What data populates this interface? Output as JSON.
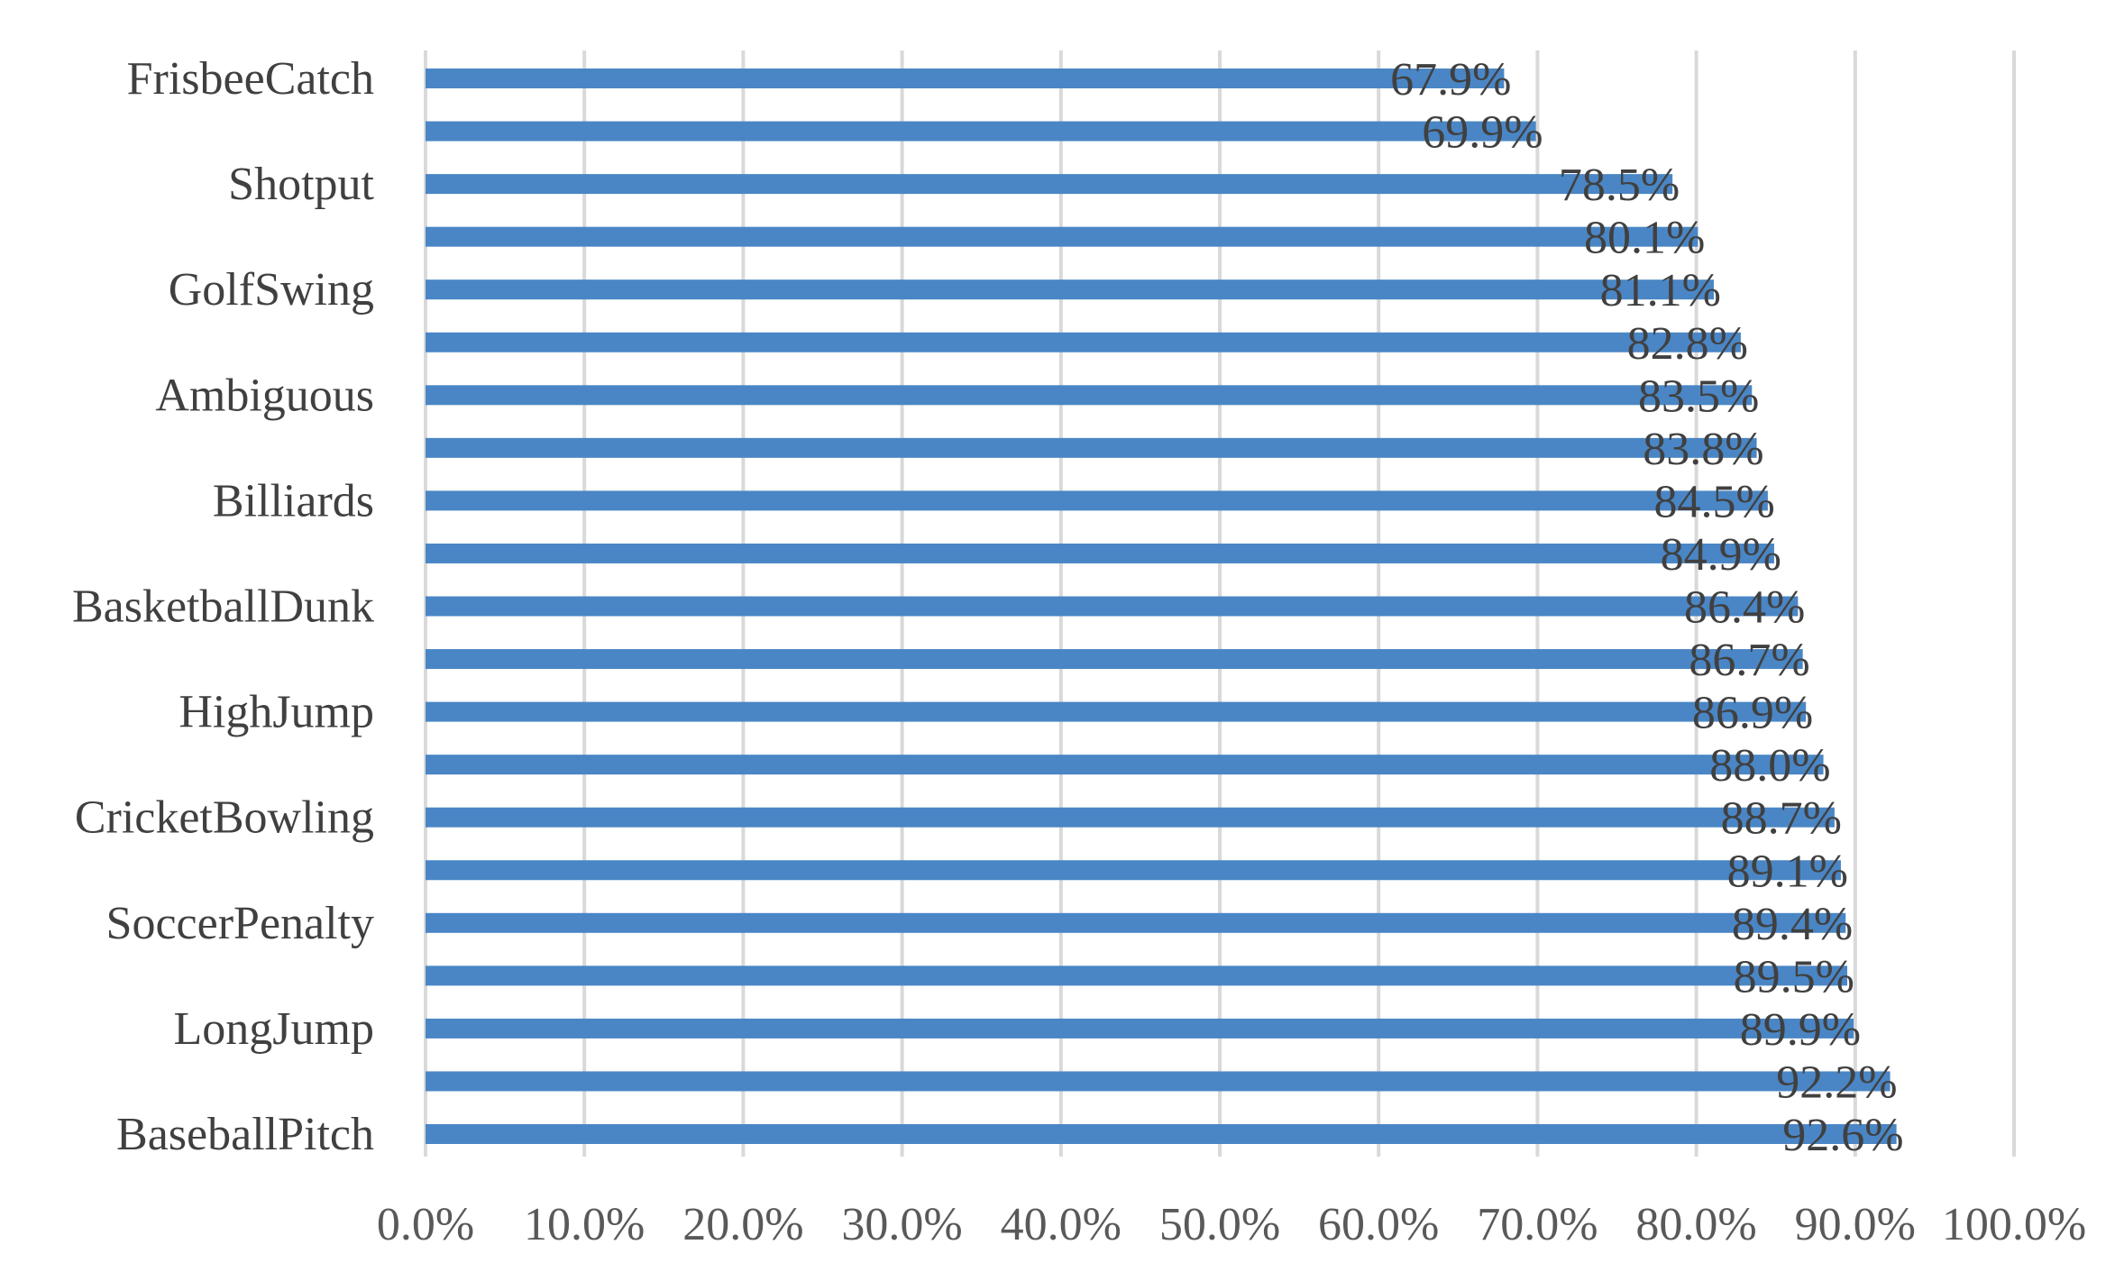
{
  "chart_data": {
    "type": "bar",
    "orientation": "horizontal",
    "title": "",
    "xlabel": "",
    "ylabel": "",
    "xlim": [
      0,
      100
    ],
    "x_ticks": [
      "0.0%",
      "10.0%",
      "20.0%",
      "30.0%",
      "40.0%",
      "50.0%",
      "60.0%",
      "70.0%",
      "80.0%",
      "90.0%",
      "100.0%"
    ],
    "grid": "vertical",
    "legend": "none",
    "bar_color": "#4a86c5",
    "categories": [
      {
        "label": "FrisbeeCatch",
        "value": 67.9,
        "value_label": "67.9%"
      },
      {
        "label": "",
        "value": 69.9,
        "value_label": "69.9%"
      },
      {
        "label": "Shotput",
        "value": 78.5,
        "value_label": "78.5%"
      },
      {
        "label": "",
        "value": 80.1,
        "value_label": "80.1%"
      },
      {
        "label": "GolfSwing",
        "value": 81.1,
        "value_label": "81.1%"
      },
      {
        "label": "",
        "value": 82.8,
        "value_label": "82.8%"
      },
      {
        "label": "Ambiguous",
        "value": 83.5,
        "value_label": "83.5%"
      },
      {
        "label": "",
        "value": 83.8,
        "value_label": "83.8%"
      },
      {
        "label": "Billiards",
        "value": 84.5,
        "value_label": "84.5%"
      },
      {
        "label": "",
        "value": 84.9,
        "value_label": "84.9%"
      },
      {
        "label": "BasketballDunk",
        "value": 86.4,
        "value_label": "86.4%"
      },
      {
        "label": "",
        "value": 86.7,
        "value_label": "86.7%"
      },
      {
        "label": "HighJump",
        "value": 86.9,
        "value_label": "86.9%"
      },
      {
        "label": "",
        "value": 88.0,
        "value_label": "88.0%"
      },
      {
        "label": "CricketBowling",
        "value": 88.7,
        "value_label": "88.7%"
      },
      {
        "label": "",
        "value": 89.1,
        "value_label": "89.1%"
      },
      {
        "label": "SoccerPenalty",
        "value": 89.4,
        "value_label": "89.4%"
      },
      {
        "label": "",
        "value": 89.5,
        "value_label": "89.5%"
      },
      {
        "label": "LongJump",
        "value": 89.9,
        "value_label": "89.9%"
      },
      {
        "label": "",
        "value": 92.2,
        "value_label": "92.2%"
      },
      {
        "label": "BaseballPitch",
        "value": 92.6,
        "value_label": "92.6%"
      }
    ]
  }
}
